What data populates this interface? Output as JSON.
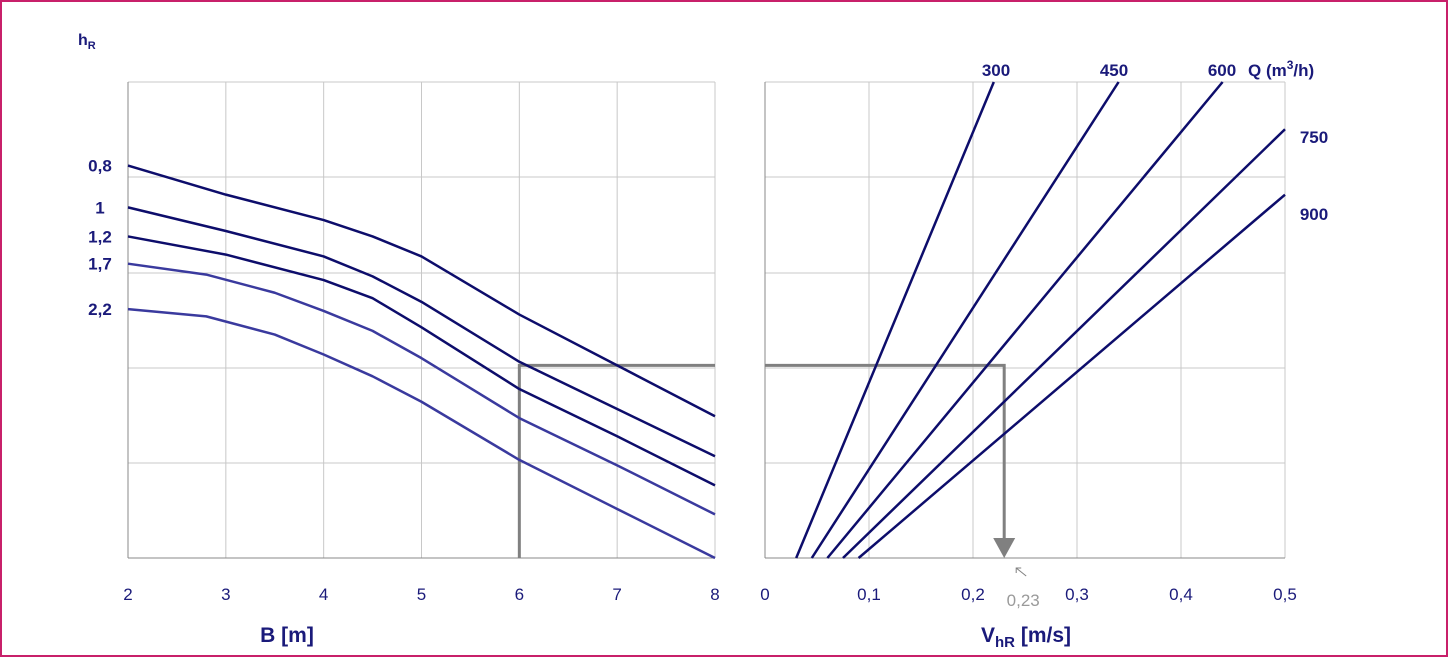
{
  "colors": {
    "frame": "#c8206a",
    "curve_dark": "#0d0d6b",
    "curve_light": "#3a3a9e",
    "grid": "#c8c8c8",
    "guide": "#808080",
    "text": "#1a1a7a"
  },
  "chart_data": [
    {
      "type": "line",
      "xlabel": "B [m]",
      "ylabel": "h",
      "ylabel_sub": "R",
      "xlim": [
        2,
        8
      ],
      "xticks": [
        "2",
        "3",
        "4",
        "5",
        "6",
        "7",
        "8"
      ],
      "grid": true,
      "series": [
        {
          "name": "0,8",
          "x": [
            2,
            3,
            4,
            4.5,
            5,
            6,
            7,
            8
          ],
          "y": [
            0.77,
            0.69,
            0.62,
            0.575,
            0.52,
            0.36,
            0.22,
            0.08
          ]
        },
        {
          "name": "1",
          "x": [
            2,
            3,
            4,
            4.5,
            5,
            6,
            7,
            8
          ],
          "y": [
            0.655,
            0.59,
            0.52,
            0.465,
            0.395,
            0.23,
            0.1,
            -0.03
          ]
        },
        {
          "name": "1,2",
          "x": [
            2,
            3,
            4,
            4.5,
            5,
            6,
            7,
            8
          ],
          "y": [
            0.575,
            0.525,
            0.455,
            0.405,
            0.325,
            0.155,
            0.025,
            -0.11
          ]
        },
        {
          "name": "1,7",
          "x": [
            2,
            2.8,
            3.5,
            4,
            4.5,
            5,
            6,
            7,
            8
          ],
          "y": [
            0.5,
            0.47,
            0.42,
            0.37,
            0.315,
            0.24,
            0.075,
            -0.055,
            -0.19
          ]
        },
        {
          "name": "2,2",
          "x": [
            2,
            2.8,
            3.5,
            4,
            4.5,
            5,
            6,
            7,
            8
          ],
          "y": [
            0.375,
            0.355,
            0.305,
            0.25,
            0.19,
            0.12,
            -0.04,
            -0.175,
            -0.31
          ]
        }
      ],
      "guide": {
        "x": 6,
        "y": 0.22
      }
    },
    {
      "type": "line",
      "xlabel": "V",
      "xlabel_sub": "hR",
      "xlabel_unit": " [m/s]",
      "xlim": [
        0,
        0.5
      ],
      "xticks": [
        "0",
        "0,1",
        "0,2",
        "0,3",
        "0,4",
        "0,5"
      ],
      "legend_title": "Q (m",
      "legend_title_sup": "3",
      "legend_title_end": "/h)",
      "grid": true,
      "series": [
        {
          "name": "300",
          "x": [
            0.03,
            0.22
          ],
          "y": [
            -0.31,
            1.0
          ]
        },
        {
          "name": "450",
          "x": [
            0.045,
            0.34
          ],
          "y": [
            -0.31,
            1.0
          ]
        },
        {
          "name": "600",
          "x": [
            0.06,
            0.44
          ],
          "y": [
            -0.31,
            1.0
          ]
        },
        {
          "name": "750",
          "x": [
            0.075,
            0.5
          ],
          "y": [
            -0.31,
            0.87
          ]
        },
        {
          "name": "900",
          "x": [
            0.09,
            0.5
          ],
          "y": [
            -0.31,
            0.69
          ]
        }
      ],
      "guide": {
        "y": 0.22,
        "x": 0.23,
        "label": "0,23"
      }
    }
  ]
}
